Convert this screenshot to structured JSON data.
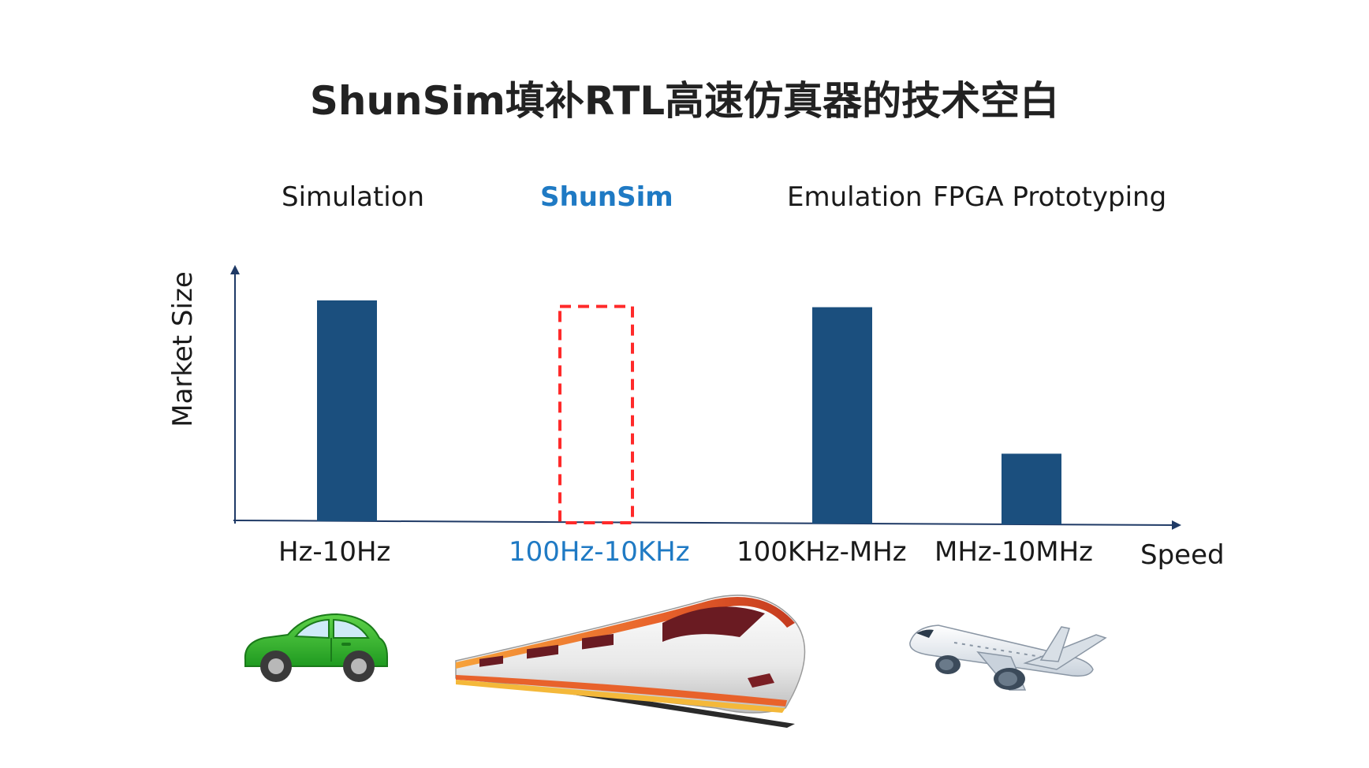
{
  "slide": {
    "title": "ShunSim填补RTL高速仿真器的技术空白"
  },
  "colors": {
    "bar": "#1b4f7e",
    "highlight_text": "#1f7ac4",
    "gap_box": "#ff2a2a",
    "axis": "#1f3a66"
  },
  "chart_data": {
    "type": "bar",
    "ylabel": "Market Size",
    "xlabel": "Speed",
    "categories": [
      "Simulation",
      "ShunSim",
      "Emulation",
      "FPGA Prototyping"
    ],
    "speed_ranges": [
      "Hz-10Hz",
      "100Hz-10KHz",
      "100KHz-MHz",
      "MHz-10MHz"
    ],
    "values": [
      100,
      98,
      98,
      32
    ],
    "gap_category": "ShunSim",
    "ylim": [
      0,
      110
    ],
    "grid": false,
    "legend": "none"
  },
  "illustrations": [
    {
      "icon": "green-car-icon"
    },
    {
      "icon": "high-speed-train-icon"
    },
    {
      "icon": "airplane-icon"
    }
  ]
}
